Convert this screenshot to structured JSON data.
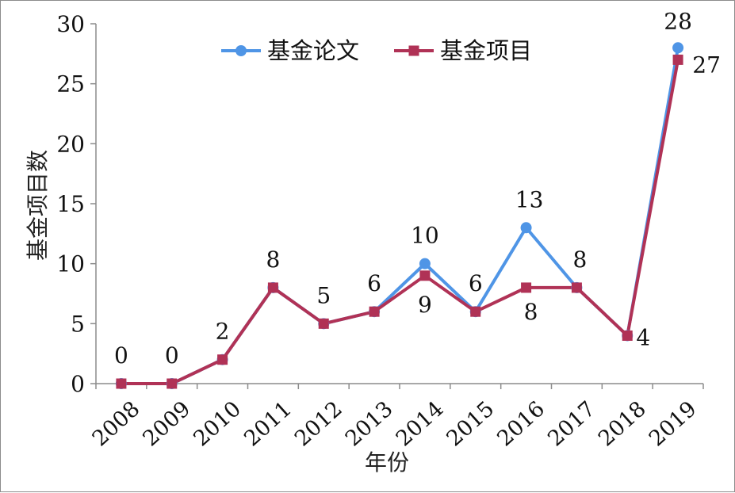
{
  "chart_data": {
    "type": "line",
    "title": "",
    "xlabel": "年份",
    "ylabel": "基金项目数",
    "categories": [
      "2008",
      "2009",
      "2010",
      "2011",
      "2012",
      "2013",
      "2014",
      "2015",
      "2016",
      "2017",
      "2018",
      "2019"
    ],
    "ylim": [
      0,
      30
    ],
    "yticks": [
      "0",
      "5",
      "10",
      "15",
      "20",
      "25",
      "30"
    ],
    "grid": false,
    "legend_position": "top-center",
    "series": [
      {
        "name": "基金论文",
        "color": "#4f95e6",
        "marker": "circle",
        "values": [
          0,
          0,
          2,
          8,
          5,
          6,
          10,
          6,
          13,
          8,
          4,
          28
        ]
      },
      {
        "name": "基金项目",
        "color": "#b03256",
        "marker": "square",
        "values": [
          0,
          0,
          2,
          8,
          5,
          6,
          9,
          6,
          8,
          8,
          4,
          27
        ]
      }
    ],
    "data_labels": [
      {
        "category": "2008",
        "text": "0",
        "series": "基金论文"
      },
      {
        "category": "2009",
        "text": "0",
        "series": "基金论文"
      },
      {
        "category": "2010",
        "text": "2",
        "series": "基金论文"
      },
      {
        "category": "2011",
        "text": "8",
        "series": "基金论文"
      },
      {
        "category": "2012",
        "text": "5",
        "series": "基金论文"
      },
      {
        "category": "2013",
        "text": "6",
        "series": "基金论文"
      },
      {
        "category": "2014",
        "text": "10",
        "series": "基金论文"
      },
      {
        "category": "2014",
        "text": "9",
        "series": "基金项目"
      },
      {
        "category": "2015",
        "text": "6",
        "series": "基金论文"
      },
      {
        "category": "2016",
        "text": "13",
        "series": "基金论文"
      },
      {
        "category": "2016",
        "text": "8",
        "series": "基金项目"
      },
      {
        "category": "2017",
        "text": "8",
        "series": "基金论文"
      },
      {
        "category": "2018",
        "text": "4",
        "series": "基金项目"
      },
      {
        "category": "2019",
        "text": "28",
        "series": "基金论文"
      },
      {
        "category": "2019",
        "text": "27",
        "series": "基金项目"
      }
    ]
  }
}
